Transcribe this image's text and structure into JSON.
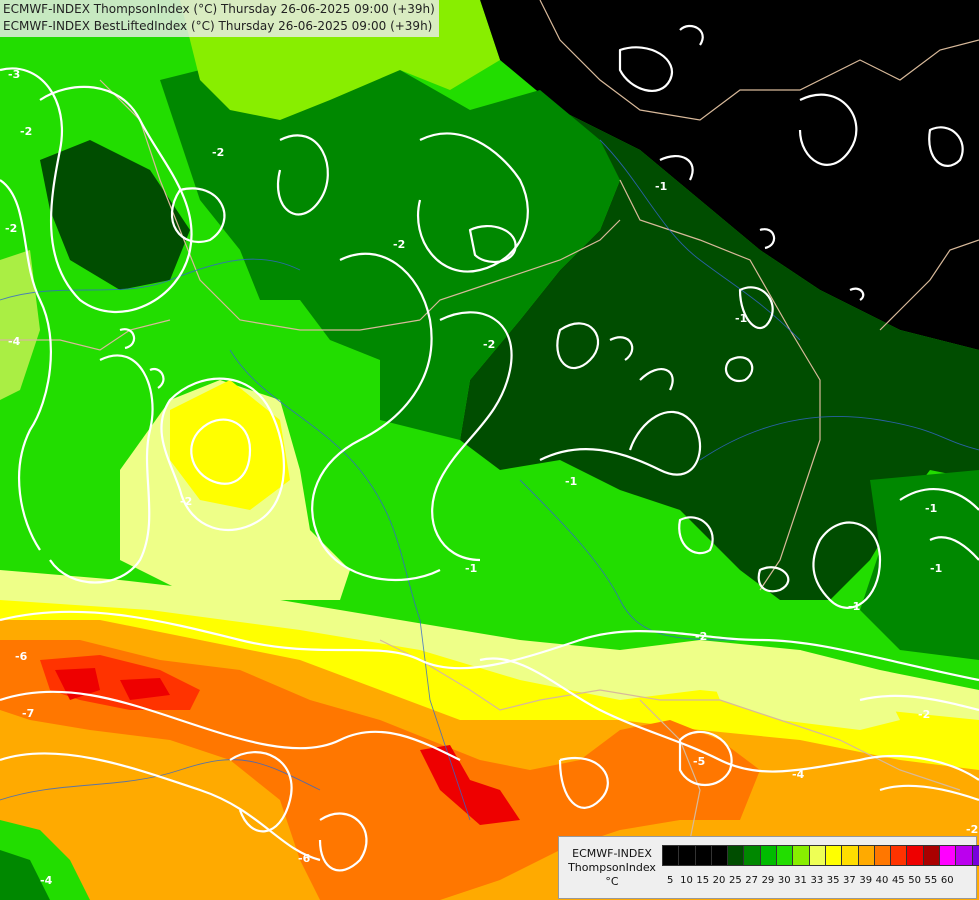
{
  "header": {
    "line1": "ECMWF-INDEX ThompsonIndex (°C) Thursday 26-06-2025 09:00 (+39h)",
    "line2": "ECMWF-INDEX BestLiftedIndex (°C) Thursday 26-06-2025 09:00 (+39h)"
  },
  "legend": {
    "title_line1": "ECMWF-INDEX",
    "title_line2": "ThompsonIndex",
    "unit": "°C",
    "swatches": [
      "#000000",
      "#000000",
      "#000000",
      "#000000",
      "#004d00",
      "#008800",
      "#00bb00",
      "#22dd00",
      "#88ee00",
      "#eeff55",
      "#ffff00",
      "#ffdd00",
      "#ffaa00",
      "#ff7700",
      "#ff3300",
      "#ee0000",
      "#aa0000",
      "#ff00ff",
      "#bb00ee",
      "#7700dd",
      "#3300dd",
      "#0000ff"
    ],
    "ticks": [
      "5",
      "10",
      "15",
      "20",
      "25",
      "27",
      "29",
      "30",
      "31",
      "33",
      "35",
      "37",
      "39",
      "40",
      "45",
      "50",
      "55",
      "60"
    ]
  },
  "contour_labels": [
    "-3",
    "-2",
    "-2",
    "-2",
    "-2",
    "-2",
    "-1",
    "-1",
    "-1",
    "-1",
    "-1",
    "-1",
    "-1",
    "-4",
    "-6",
    "-7",
    "-2",
    "-2",
    "-5",
    "-4",
    "-6",
    "-4",
    "-2",
    "-2"
  ]
}
